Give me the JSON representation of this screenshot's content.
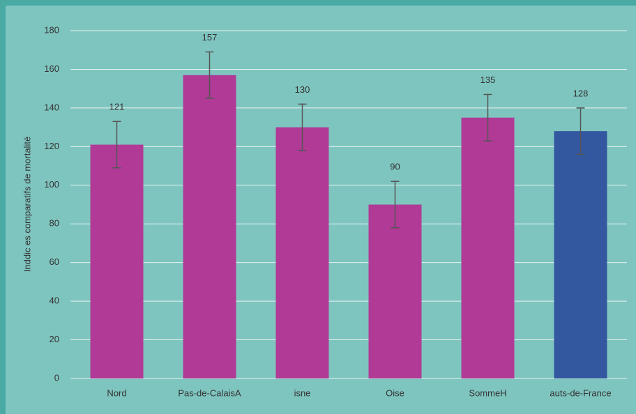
{
  "chart_data": {
    "type": "bar",
    "y_label": "Inddic es comparatifs de mortalité",
    "categories": [
      "Nord",
      "Pas-de-CalaisA",
      "isne",
      "Oise",
      "SommeH",
      "auts-de-France"
    ],
    "values": [
      121,
      157,
      130,
      90,
      135,
      128
    ],
    "errors": [
      12,
      12,
      12,
      12,
      12,
      12
    ],
    "colors": [
      "#b03a96",
      "#b03a96",
      "#b03a96",
      "#b03a96",
      "#b03a96",
      "#3358a0"
    ],
    "ylim": [
      0,
      180
    ],
    "yticks": [
      0,
      20,
      40,
      60,
      80,
      100,
      120,
      140,
      160,
      180
    ],
    "grid": true
  }
}
